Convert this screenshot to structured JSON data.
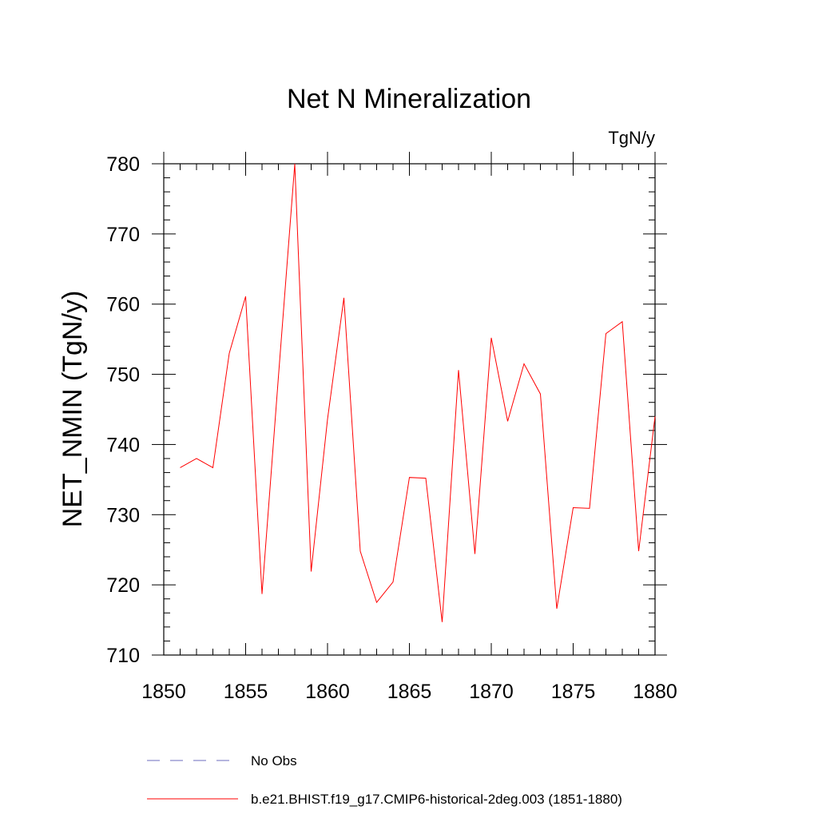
{
  "chart_data": {
    "type": "line",
    "title": "Net N Mineralization",
    "units_label": "TgN/y",
    "xlabel": "",
    "ylabel": "NET_NMIN  (TgN/y)",
    "xlim": [
      1850,
      1880
    ],
    "ylim": [
      710,
      780
    ],
    "xticks": [
      1850,
      1855,
      1860,
      1865,
      1870,
      1875,
      1880
    ],
    "yticks": [
      710,
      720,
      730,
      740,
      750,
      760,
      770,
      780
    ],
    "legend_position": "bottom",
    "series": [
      {
        "name": "b.e21.BHIST.f19_g17.CMIP6-historical-2deg.003 (1851-1880)",
        "color": "#ff0000",
        "style": "solid",
        "x": [
          1851,
          1852,
          1853,
          1854,
          1855,
          1856,
          1857,
          1858,
          1859,
          1860,
          1861,
          1862,
          1863,
          1864,
          1865,
          1866,
          1867,
          1868,
          1869,
          1870,
          1871,
          1872,
          1873,
          1874,
          1875,
          1876,
          1877,
          1878,
          1879,
          1880
        ],
        "y": [
          736.7,
          738.0,
          736.7,
          753.0,
          761.1,
          718.7,
          749.6,
          780.0,
          721.9,
          743.6,
          760.9,
          724.8,
          717.5,
          720.4,
          735.3,
          735.2,
          714.7,
          750.6,
          724.4,
          755.2,
          743.3,
          751.5,
          747.2,
          716.6,
          731.0,
          730.9,
          755.8,
          757.5,
          724.8,
          744.0
        ]
      },
      {
        "name": "No Obs",
        "color": "#6b6bbf",
        "style": "dashed",
        "x": [],
        "y": []
      }
    ]
  }
}
